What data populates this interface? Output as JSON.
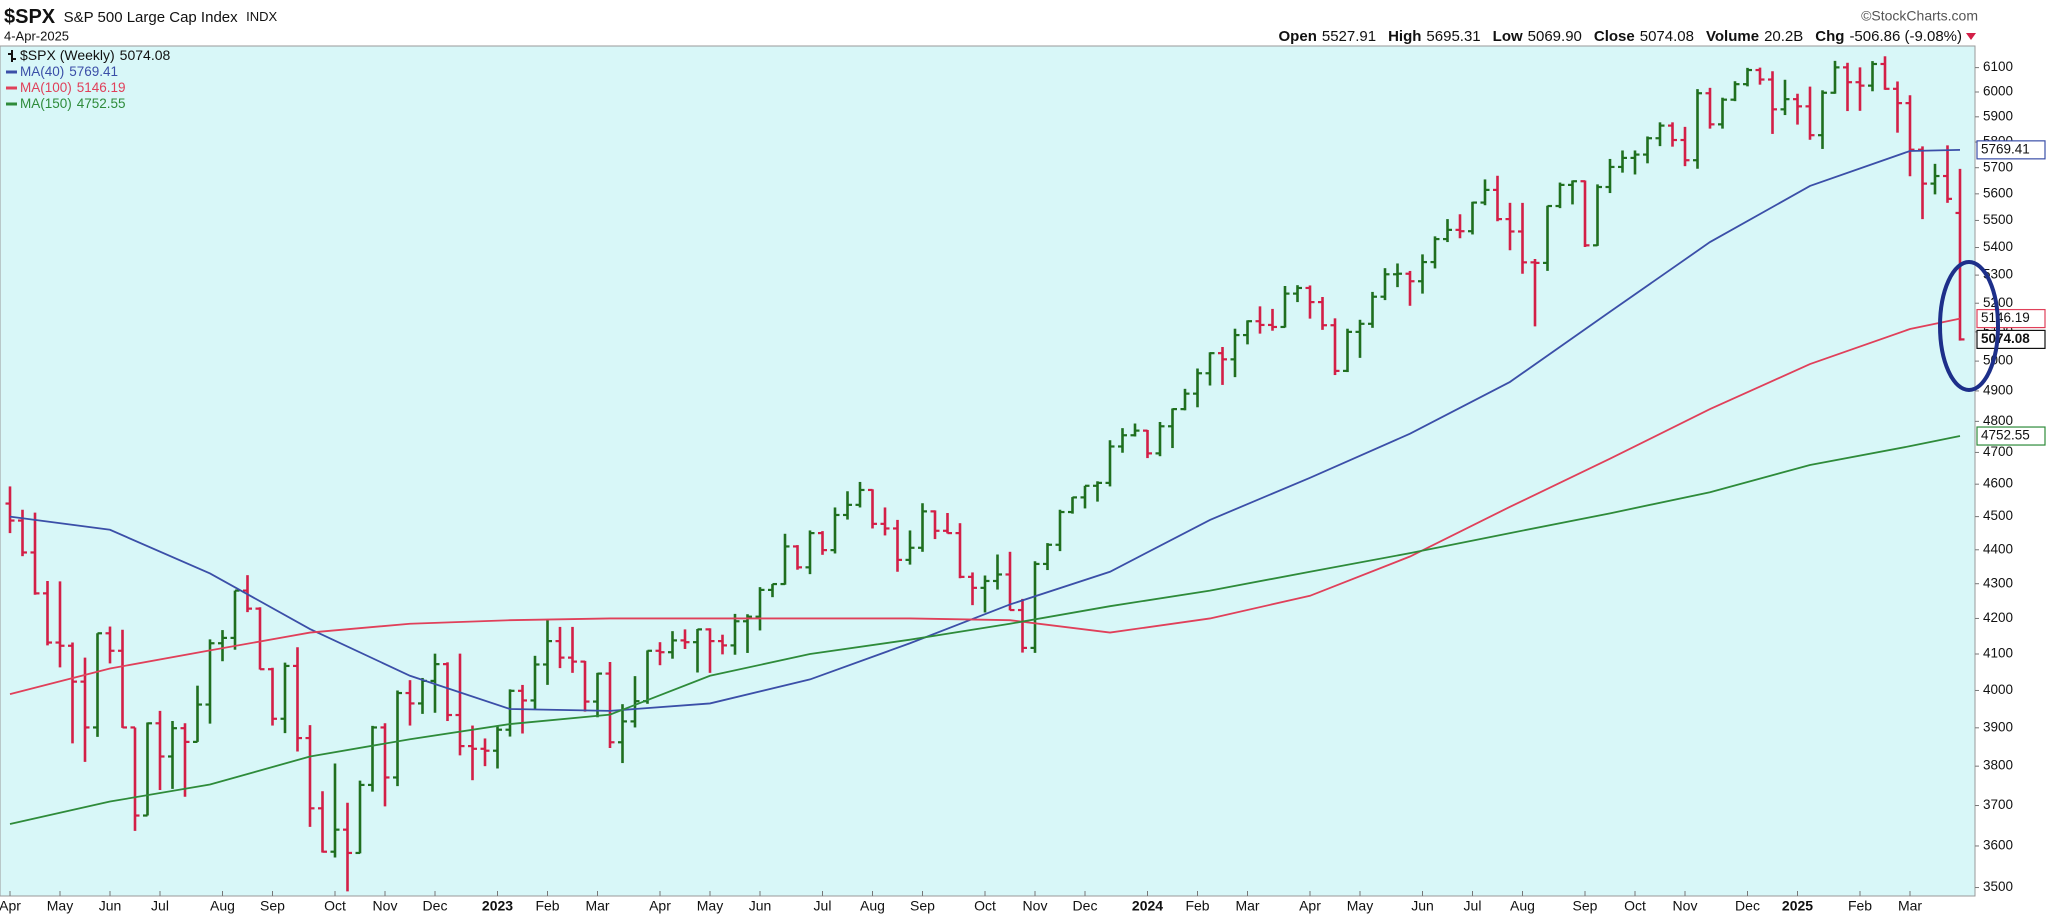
{
  "chart_data": {
    "type": "ohlc",
    "title": "$SPX",
    "subtitle": "S&P 500 Large Cap Index",
    "exchange": "INDX",
    "date": "4-Apr-2025",
    "source": "©StockCharts.com",
    "header": [
      {
        "name": "Open",
        "value": "5527.91"
      },
      {
        "name": "High",
        "value": "5695.31"
      },
      {
        "name": "Low",
        "value": "5069.90"
      },
      {
        "name": "Close",
        "value": "5074.08"
      },
      {
        "name": "Volume",
        "value": "20.2B"
      },
      {
        "name": "Chg",
        "value": "-506.86 (-9.08%)"
      }
    ],
    "name": "$SPX (Weekly)",
    "up_color": "#1f6f1f",
    "down_color": "#d31f47",
    "ohlc": [
      [
        4540,
        4593,
        4450,
        4488
      ],
      [
        4488,
        4521,
        4381,
        4392
      ],
      [
        4392,
        4512,
        4268,
        4272
      ],
      [
        4272,
        4308,
        4124,
        4132
      ],
      [
        4132,
        4307,
        4063,
        4123
      ],
      [
        4123,
        4132,
        3859,
        4024
      ],
      [
        4024,
        4090,
        3811,
        3901
      ],
      [
        3901,
        4158,
        3876,
        4158
      ],
      [
        4158,
        4177,
        4074,
        4109
      ],
      [
        4109,
        4168,
        3900,
        3901
      ],
      [
        3901,
        3901,
        3637,
        3675
      ],
      [
        3675,
        3914,
        3675,
        3912
      ],
      [
        3912,
        3945,
        3739,
        3825
      ],
      [
        3825,
        3918,
        3742,
        3899
      ],
      [
        3899,
        3912,
        3722,
        3863
      ],
      [
        3863,
        4013,
        3863,
        3962
      ],
      [
        3962,
        4141,
        3911,
        4130
      ],
      [
        4130,
        4167,
        4080,
        4145
      ],
      [
        4145,
        4280,
        4112,
        4280
      ],
      [
        4280,
        4325,
        4218,
        4228
      ],
      [
        4228,
        4232,
        4057,
        4058
      ],
      [
        4058,
        4062,
        3906,
        3924
      ],
      [
        3924,
        4076,
        3886,
        4067
      ],
      [
        4067,
        4119,
        3838,
        3873
      ],
      [
        3873,
        3907,
        3647,
        3693
      ],
      [
        3693,
        3736,
        3584,
        3586
      ],
      [
        3586,
        3807,
        3572,
        3640
      ],
      [
        3640,
        3707,
        3491,
        3583
      ],
      [
        3583,
        3763,
        3582,
        3752
      ],
      [
        3752,
        3905,
        3735,
        3901
      ],
      [
        3901,
        3912,
        3698,
        3771
      ],
      [
        3771,
        4000,
        3749,
        3993
      ],
      [
        3993,
        4028,
        3906,
        3965
      ],
      [
        3965,
        4034,
        3937,
        4026
      ],
      [
        4026,
        4101,
        3940,
        4072
      ],
      [
        4072,
        4077,
        3918,
        3934
      ],
      [
        3934,
        4101,
        3828,
        3852
      ],
      [
        3852,
        3906,
        3764,
        3845
      ],
      [
        3845,
        3872,
        3800,
        3840
      ],
      [
        3840,
        3906,
        3794,
        3895
      ],
      [
        3895,
        4003,
        3877,
        3999
      ],
      [
        3999,
        4015,
        3885,
        3973
      ],
      [
        3973,
        4095,
        3950,
        4071
      ],
      [
        4071,
        4195,
        4015,
        4136
      ],
      [
        4136,
        4176,
        4061,
        4090
      ],
      [
        4090,
        4176,
        4048,
        4079
      ],
      [
        4079,
        4081,
        3943,
        3970
      ],
      [
        3970,
        4048,
        3928,
        4046
      ],
      [
        4046,
        4078,
        3847,
        3862
      ],
      [
        3862,
        3963,
        3808,
        3917
      ],
      [
        3917,
        4039,
        3901,
        3971
      ],
      [
        3971,
        4110,
        3964,
        4109
      ],
      [
        4109,
        4133,
        4069,
        4105
      ],
      [
        4105,
        4164,
        4087,
        4138
      ],
      [
        4138,
        4169,
        4114,
        4133
      ],
      [
        4133,
        4170,
        4049,
        4169
      ],
      [
        4169,
        4172,
        4048,
        4136
      ],
      [
        4136,
        4154,
        4099,
        4124
      ],
      [
        4124,
        4213,
        4098,
        4192
      ],
      [
        4192,
        4212,
        4103,
        4205
      ],
      [
        4205,
        4290,
        4166,
        4282
      ],
      [
        4282,
        4299,
        4261,
        4299
      ],
      [
        4299,
        4448,
        4297,
        4410
      ],
      [
        4410,
        4414,
        4341,
        4348
      ],
      [
        4348,
        4458,
        4328,
        4450
      ],
      [
        4450,
        4456,
        4385,
        4399
      ],
      [
        4399,
        4528,
        4389,
        4505
      ],
      [
        4505,
        4578,
        4491,
        4536
      ],
      [
        4536,
        4607,
        4528,
        4582
      ],
      [
        4582,
        4584,
        4464,
        4478
      ],
      [
        4478,
        4528,
        4443,
        4464
      ],
      [
        4464,
        4490,
        4335,
        4370
      ],
      [
        4370,
        4458,
        4356,
        4406
      ],
      [
        4406,
        4541,
        4394,
        4516
      ],
      [
        4516,
        4519,
        4432,
        4457
      ],
      [
        4457,
        4511,
        4449,
        4450
      ],
      [
        4450,
        4480,
        4316,
        4320
      ],
      [
        4320,
        4333,
        4238,
        4288
      ],
      [
        4288,
        4324,
        4217,
        4308
      ],
      [
        4308,
        4386,
        4283,
        4327
      ],
      [
        4327,
        4394,
        4223,
        4224
      ],
      [
        4224,
        4256,
        4104,
        4117
      ],
      [
        4117,
        4366,
        4103,
        4358
      ],
      [
        4358,
        4420,
        4340,
        4415
      ],
      [
        4415,
        4521,
        4396,
        4514
      ],
      [
        4514,
        4560,
        4509,
        4559
      ],
      [
        4559,
        4595,
        4525,
        4595
      ],
      [
        4595,
        4609,
        4546,
        4604
      ],
      [
        4604,
        4739,
        4593,
        4719
      ],
      [
        4719,
        4778,
        4699,
        4755
      ],
      [
        4755,
        4793,
        4751,
        4770
      ],
      [
        4770,
        4772,
        4682,
        4697
      ],
      [
        4697,
        4798,
        4688,
        4784
      ],
      [
        4784,
        4842,
        4714,
        4840
      ],
      [
        4840,
        4907,
        4836,
        4891
      ],
      [
        4891,
        4975,
        4846,
        4959
      ],
      [
        4959,
        5030,
        4918,
        5027
      ],
      [
        5027,
        5048,
        4920,
        5006
      ],
      [
        5006,
        5111,
        4946,
        5089
      ],
      [
        5089,
        5140,
        5057,
        5137
      ],
      [
        5137,
        5189,
        5094,
        5124
      ],
      [
        5124,
        5180,
        5104,
        5117
      ],
      [
        5117,
        5261,
        5115,
        5234
      ],
      [
        5234,
        5264,
        5204,
        5254
      ],
      [
        5254,
        5263,
        5146,
        5204
      ],
      [
        5204,
        5222,
        5107,
        5123
      ],
      [
        5123,
        5147,
        4953,
        4967
      ],
      [
        4967,
        5111,
        4963,
        5100
      ],
      [
        5100,
        5142,
        5011,
        5128
      ],
      [
        5128,
        5240,
        5114,
        5223
      ],
      [
        5223,
        5325,
        5211,
        5303
      ],
      [
        5303,
        5342,
        5257,
        5305
      ],
      [
        5305,
        5315,
        5191,
        5278
      ],
      [
        5278,
        5375,
        5234,
        5347
      ],
      [
        5347,
        5441,
        5324,
        5431
      ],
      [
        5431,
        5505,
        5420,
        5465
      ],
      [
        5465,
        5523,
        5434,
        5460
      ],
      [
        5460,
        5570,
        5448,
        5567
      ],
      [
        5567,
        5655,
        5557,
        5615
      ],
      [
        5615,
        5669,
        5497,
        5505
      ],
      [
        5505,
        5566,
        5390,
        5459
      ],
      [
        5459,
        5566,
        5305,
        5346
      ],
      [
        5346,
        5358,
        5119,
        5344
      ],
      [
        5344,
        5555,
        5315,
        5554
      ],
      [
        5554,
        5643,
        5546,
        5634
      ],
      [
        5634,
        5651,
        5560,
        5648
      ],
      [
        5648,
        5651,
        5402,
        5408
      ],
      [
        5408,
        5636,
        5406,
        5626
      ],
      [
        5626,
        5734,
        5603,
        5703
      ],
      [
        5703,
        5767,
        5681,
        5738
      ],
      [
        5738,
        5767,
        5674,
        5751
      ],
      [
        5751,
        5822,
        5717,
        5815
      ],
      [
        5815,
        5878,
        5784,
        5865
      ],
      [
        5865,
        5878,
        5782,
        5808
      ],
      [
        5808,
        5860,
        5706,
        5729
      ],
      [
        5729,
        6012,
        5696,
        5995
      ],
      [
        5995,
        6017,
        5853,
        5870
      ],
      [
        5870,
        5977,
        5853,
        5969
      ],
      [
        5969,
        6044,
        5963,
        6032
      ],
      [
        6032,
        6099,
        6023,
        6090
      ],
      [
        6090,
        6100,
        6030,
        6051
      ],
      [
        6051,
        6085,
        5832,
        5930
      ],
      [
        5930,
        6050,
        5907,
        5971
      ],
      [
        5971,
        5993,
        5869,
        5942
      ],
      [
        5942,
        6022,
        5809,
        5827
      ],
      [
        5827,
        6007,
        5773,
        5997
      ],
      [
        5997,
        6128,
        5993,
        6101
      ],
      [
        6101,
        6120,
        5923,
        6040
      ],
      [
        6040,
        6101,
        5924,
        6026
      ],
      [
        6026,
        6127,
        6003,
        6115
      ],
      [
        6115,
        6147,
        6009,
        6013
      ],
      [
        6013,
        6043,
        5837,
        5955
      ],
      [
        5955,
        5987,
        5667,
        5770
      ],
      [
        5770,
        5783,
        5505,
        5639
      ],
      [
        5639,
        5715,
        5598,
        5668
      ],
      [
        5668,
        5787,
        5566,
        5581
      ],
      [
        5527.91,
        5695.31,
        5069.9,
        5074.08
      ]
    ],
    "series": [
      {
        "name": "MA(40)",
        "color": "#3b4fa8",
        "x": [
          0,
          8,
          16,
          24,
          32,
          40,
          48,
          56,
          64,
          72,
          80,
          88,
          96,
          104,
          112,
          120,
          128,
          136,
          144,
          152,
          156
        ],
        "values": [
          4500,
          4460,
          4330,
          4170,
          4040,
          3950,
          3945,
          3965,
          4030,
          4130,
          4240,
          4335,
          4490,
          4620,
          4760,
          4930,
          5170,
          5420,
          5630,
          5765,
          5769.41
        ]
      },
      {
        "name": "MA(100)",
        "color": "#e0405a",
        "x": [
          0,
          8,
          16,
          24,
          32,
          40,
          48,
          56,
          64,
          72,
          80,
          88,
          96,
          104,
          112,
          120,
          128,
          136,
          144,
          152,
          156
        ],
        "values": [
          3990,
          4060,
          4110,
          4160,
          4185,
          4195,
          4200,
          4200,
          4200,
          4200,
          4195,
          4160,
          4200,
          4265,
          4380,
          4530,
          4680,
          4840,
          4990,
          5110,
          5146.19
        ]
      },
      {
        "name": "MA(150)",
        "color": "#2e8b3a",
        "x": [
          0,
          8,
          16,
          24,
          32,
          40,
          48,
          56,
          64,
          72,
          80,
          88,
          96,
          104,
          112,
          120,
          128,
          136,
          144,
          152,
          156
        ],
        "values": [
          3654,
          3710,
          3753,
          3825,
          3870,
          3910,
          3935,
          4040,
          4100,
          4140,
          4185,
          4235,
          4280,
          4335,
          4390,
          4450,
          4510,
          4575,
          4660,
          4720,
          4752.55
        ]
      }
    ],
    "xlim": [
      -0.8,
      157.2
    ],
    "xticks": [
      {
        "value": 0,
        "label": "Apr"
      },
      {
        "value": 4,
        "label": "May"
      },
      {
        "value": 8,
        "label": "Jun"
      },
      {
        "value": 12,
        "label": "Jul"
      },
      {
        "value": 17,
        "label": "Aug"
      },
      {
        "value": 21,
        "label": "Sep"
      },
      {
        "value": 26,
        "label": "Oct"
      },
      {
        "value": 30,
        "label": "Nov"
      },
      {
        "value": 34,
        "label": "Dec"
      },
      {
        "value": 39,
        "label": "2023"
      },
      {
        "value": 43,
        "label": "Feb"
      },
      {
        "value": 47,
        "label": "Mar"
      },
      {
        "value": 52,
        "label": "Apr"
      },
      {
        "value": 56,
        "label": "May"
      },
      {
        "value": 60,
        "label": "Jun"
      },
      {
        "value": 65,
        "label": "Jul"
      },
      {
        "value": 69,
        "label": "Aug"
      },
      {
        "value": 73,
        "label": "Sep"
      },
      {
        "value": 78,
        "label": "Oct"
      },
      {
        "value": 82,
        "label": "Nov"
      },
      {
        "value": 86,
        "label": "Dec"
      },
      {
        "value": 91,
        "label": "2024"
      },
      {
        "value": 95,
        "label": "Feb"
      },
      {
        "value": 99,
        "label": "Mar"
      },
      {
        "value": 104,
        "label": "Apr"
      },
      {
        "value": 108,
        "label": "May"
      },
      {
        "value": 113,
        "label": "Jun"
      },
      {
        "value": 117,
        "label": "Jul"
      },
      {
        "value": 121,
        "label": "Aug"
      },
      {
        "value": 126,
        "label": "Sep"
      },
      {
        "value": 130,
        "label": "Oct"
      },
      {
        "value": 134,
        "label": "Nov"
      },
      {
        "value": 139,
        "label": "Dec"
      },
      {
        "value": 143,
        "label": "2025"
      },
      {
        "value": 148,
        "label": "Feb"
      },
      {
        "value": 152,
        "label": "Mar"
      }
    ],
    "ylim": [
      3480,
      6190
    ],
    "yticks": [
      3500,
      3600,
      3700,
      3800,
      3900,
      4000,
      4100,
      4200,
      4300,
      4400,
      4500,
      4600,
      4700,
      4800,
      4900,
      5000,
      5100,
      5200,
      5300,
      5400,
      5500,
      5600,
      5700,
      5800,
      5900,
      6000,
      6100
    ],
    "log_scale": true,
    "grid": false,
    "legend": "upper left"
  }
}
